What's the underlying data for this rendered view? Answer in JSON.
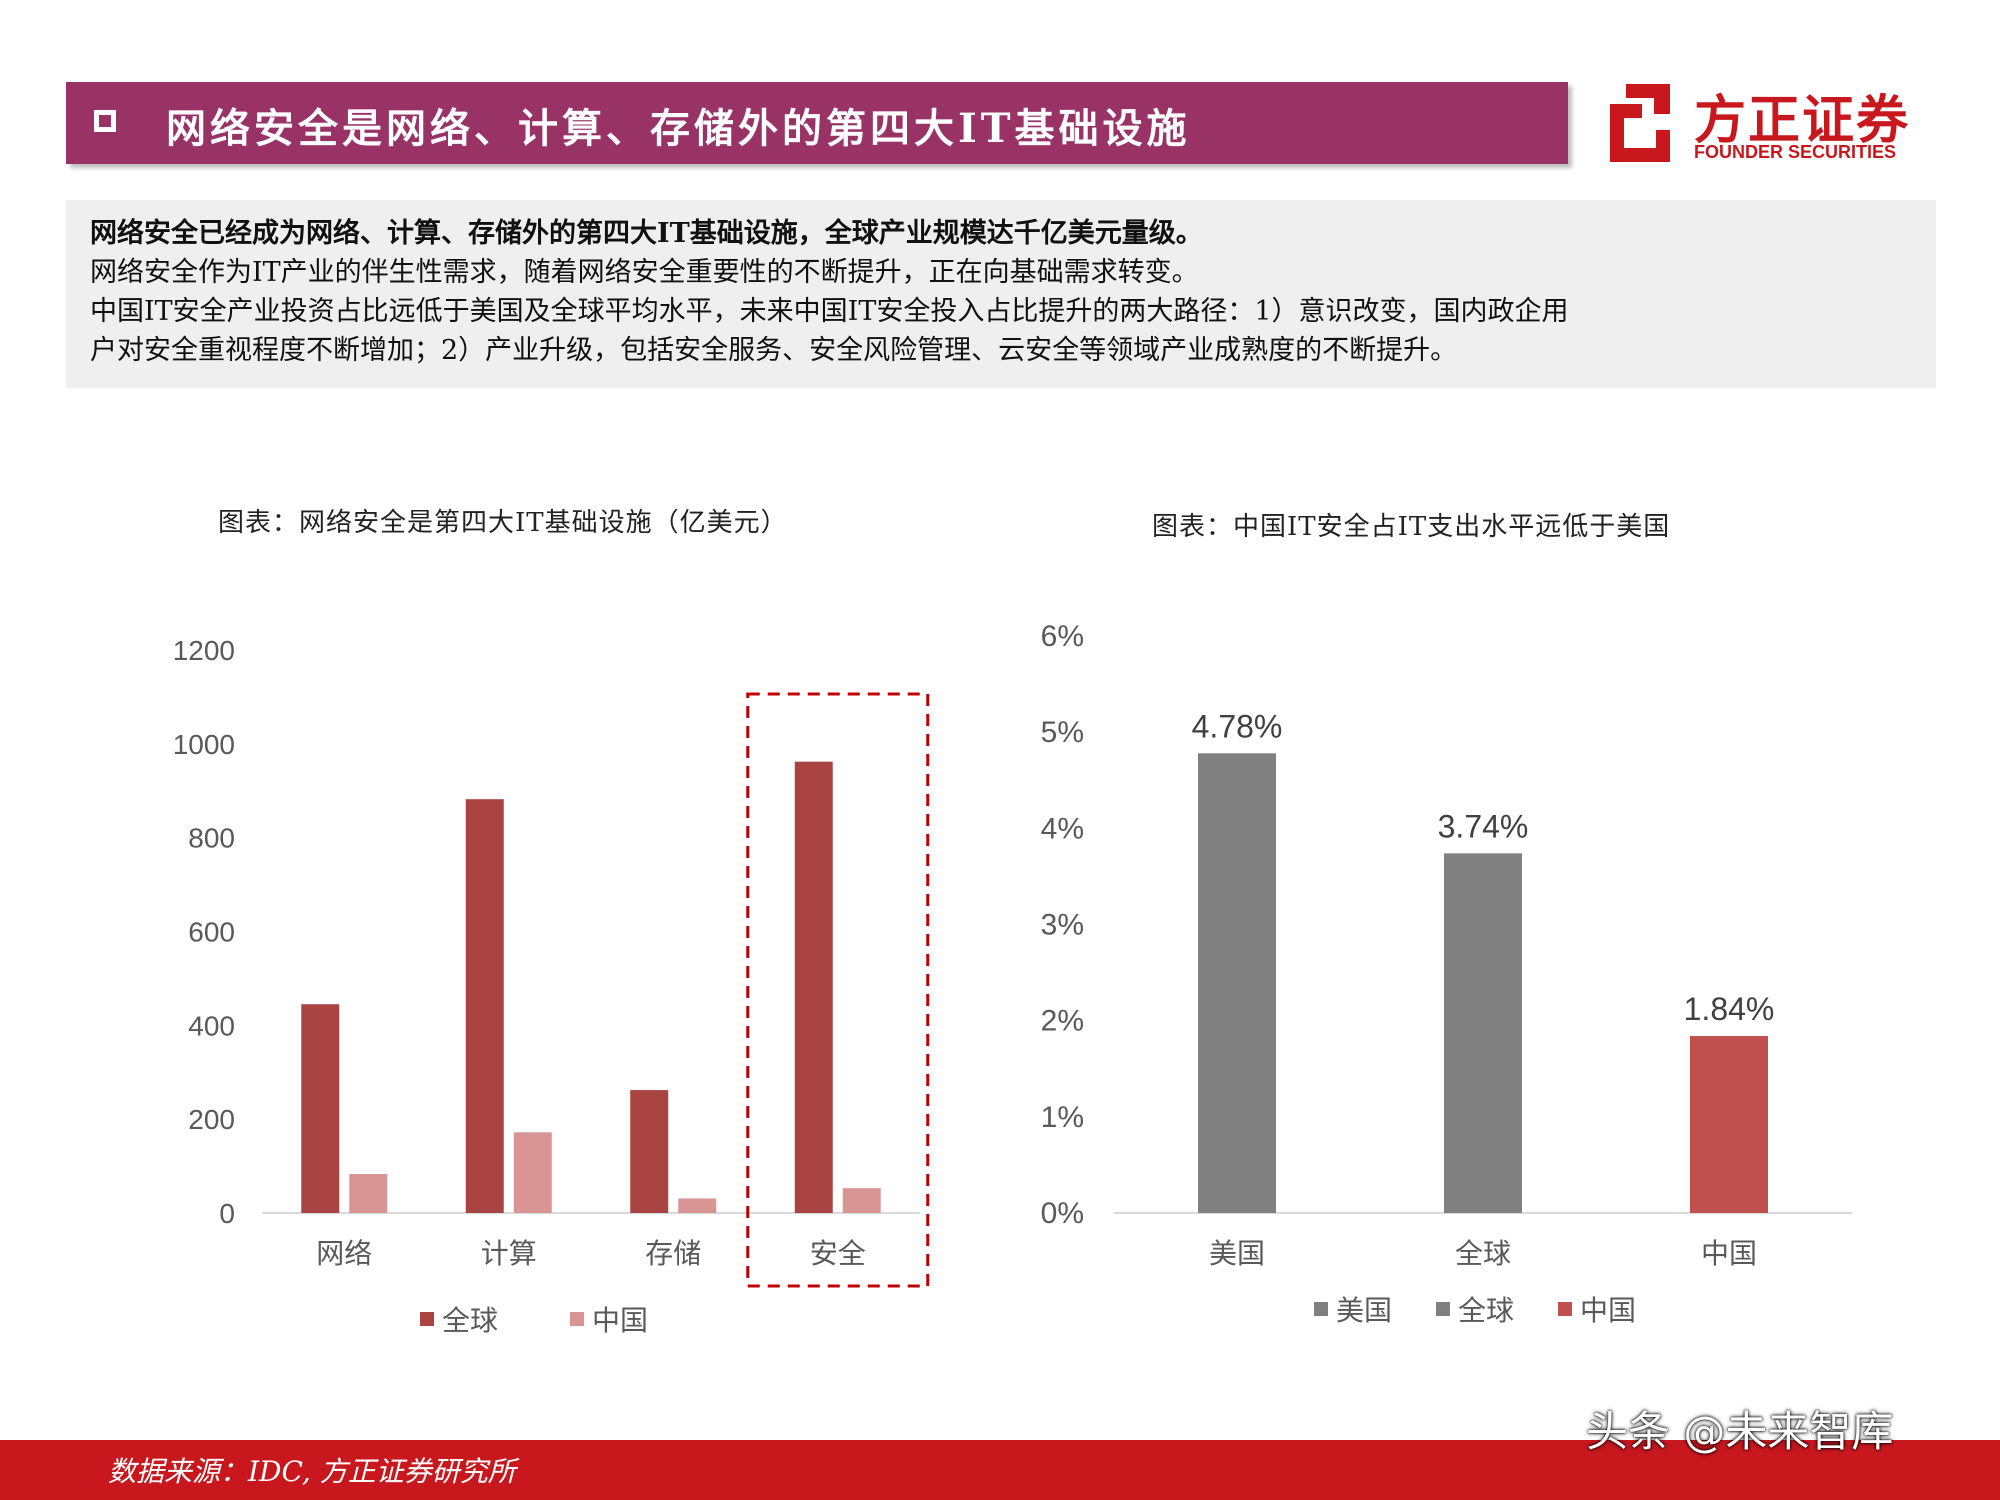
{
  "header": {
    "title": "网络安全是网络、计算、存储外的第四大IT基础设施"
  },
  "logo": {
    "name_cn": "方正证券",
    "name_en": "FOUNDER SECURITIES",
    "brand_color": "#c8181e"
  },
  "summary": {
    "line1": "网络安全已经成为网络、计算、存储外的第四大IT基础设施，全球产业规模达千亿美元量级。",
    "line2": "网络安全作为IT产业的伴生性需求，随着网络安全重要性的不断提升，正在向基础需求转变。",
    "line3": "中国IT安全产业投资占比远低于美国及全球平均水平，未来中国IT安全投入占比提升的两大路径：1）意识改变，国内政企用",
    "line4": "户对安全重视程度不断增加；2）产业升级，包括安全服务、安全风险管理、云安全等领域产业成熟度的不断提升。"
  },
  "chart_data": [
    {
      "type": "bar",
      "title": "图表：网络安全是第四大IT基础设施（亿美元）",
      "categories": [
        "网络",
        "计算",
        "存储",
        "安全"
      ],
      "series": [
        {
          "name": "全球",
          "values": [
            445,
            882,
            262,
            962
          ],
          "color": "#a94442"
        },
        {
          "name": "中国",
          "values": [
            83,
            172,
            31,
            53
          ],
          "color": "#d99594"
        }
      ],
      "ylim": [
        0,
        1200
      ],
      "yticks": [
        "0",
        "200",
        "400",
        "600",
        "800",
        "1000",
        "1200"
      ],
      "highlight_category": "安全",
      "grid": false,
      "legend_position": "bottom"
    },
    {
      "type": "bar",
      "title": "图表：中国IT安全占IT支出水平远低于美国",
      "categories": [
        "美国",
        "全球",
        "中国"
      ],
      "values": [
        4.78,
        3.74,
        1.84
      ],
      "data_labels": [
        "4.78%",
        "3.74%",
        "1.84%"
      ],
      "colors": [
        "#808080",
        "#808080",
        "#c0504d"
      ],
      "legend": [
        "美国",
        "全球",
        "中国"
      ],
      "ylim": [
        0,
        6
      ],
      "yticks": [
        "0%",
        "1%",
        "2%",
        "3%",
        "4%",
        "5%",
        "6%"
      ],
      "grid": false,
      "legend_position": "bottom"
    }
  ],
  "footer": {
    "source": "数据来源：IDC, 方正证券研究所",
    "watermark": "头条 @未来智库"
  }
}
